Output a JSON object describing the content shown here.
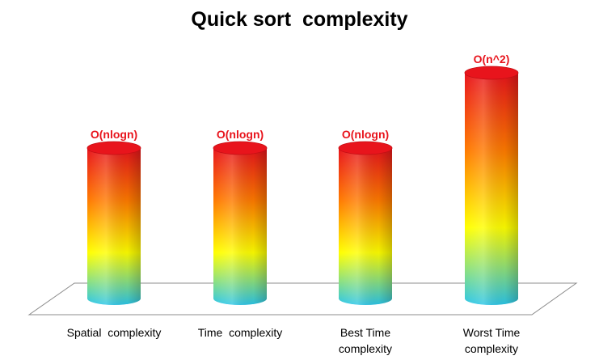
{
  "chart_data": {
    "type": "bar",
    "title": "Quick sort  complexity",
    "categories": [
      "Spatial  complexity",
      "Time  complexity",
      "Best Time complexity",
      "Worst Time complexity"
    ],
    "category_lines": [
      [
        "Spatial  complexity"
      ],
      [
        "Time  complexity"
      ],
      [
        "Best Time",
        "complexity"
      ],
      [
        "Worst Time",
        "complexity"
      ]
    ],
    "values": [
      1,
      1,
      1,
      1.5
    ],
    "data_labels": [
      "O(nlogn)",
      "O(nlogn)",
      "O(nlogn)",
      "O(n^2)"
    ],
    "ylim": [
      0,
      1.5
    ],
    "grid": false,
    "legend": "none",
    "style": "3d-cylinder",
    "label_color": "#e8141c",
    "gradient_colors": [
      "#e8141c",
      "#ff7a00",
      "#ffff00",
      "#2bc6e8"
    ]
  }
}
